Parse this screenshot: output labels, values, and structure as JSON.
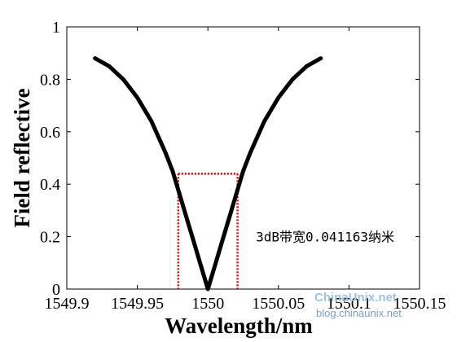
{
  "chart_data": {
    "type": "line",
    "title": "",
    "xlabel": "Wavelength/nm",
    "ylabel": "Field reflective",
    "xlim": [
      1549.9,
      1550.15
    ],
    "ylim": [
      0,
      1
    ],
    "x_ticks": [
      1549.9,
      1549.95,
      1550,
      1550.05,
      1550.1,
      1550.15
    ],
    "x_tick_labels": [
      "1549.9",
      "1549.95",
      "1550",
      "1550.05",
      "1550.1",
      "1550.15"
    ],
    "y_ticks": [
      0,
      0.2,
      0.4,
      0.6,
      0.8,
      1
    ],
    "y_tick_labels": [
      "0",
      "0.2",
      "0.4",
      "0.6",
      "0.8",
      "1"
    ],
    "grid": false,
    "series": [
      {
        "color": "#000000",
        "x": [
          1549.92,
          1549.93,
          1549.94,
          1549.95,
          1549.96,
          1549.97,
          1549.975,
          1549.98,
          1549.985,
          1549.99,
          1549.995,
          1550.0,
          1550.005,
          1550.01,
          1550.015,
          1550.02,
          1550.025,
          1550.03,
          1550.04,
          1550.05,
          1550.06,
          1550.07,
          1550.08
        ],
        "y": [
          0.88,
          0.85,
          0.8,
          0.73,
          0.64,
          0.52,
          0.45,
          0.36,
          0.27,
          0.18,
          0.09,
          0.0,
          0.09,
          0.18,
          0.27,
          0.36,
          0.45,
          0.52,
          0.64,
          0.73,
          0.8,
          0.85,
          0.88
        ]
      }
    ],
    "bandwidth_markers": {
      "color": "#d40000",
      "x_left": 1549.979,
      "x_right": 1550.021,
      "y_level": 0.44
    },
    "annotation": {
      "text": "3dB带宽0.041163纳米",
      "x": 1550.034,
      "y": 0.2
    }
  },
  "watermark": {
    "line1": "ChinaUnix.net",
    "line2": "blog.chinaunix.net"
  }
}
